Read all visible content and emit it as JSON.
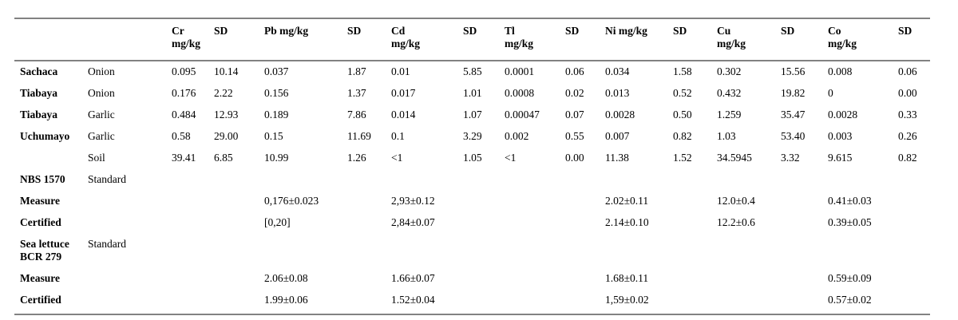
{
  "colors": {
    "rule_gray": "#828282",
    "text": "#000000",
    "background": "#ffffff"
  },
  "table": {
    "headers": [
      {
        "l1": "",
        "l2": ""
      },
      {
        "l1": "",
        "l2": ""
      },
      {
        "l1": "Cr",
        "l2": "mg/kg"
      },
      {
        "l1": "SD",
        "l2": ""
      },
      {
        "l1": "Pb mg/kg",
        "l2": ""
      },
      {
        "l1": "SD",
        "l2": ""
      },
      {
        "l1": "Cd",
        "l2": "mg/kg"
      },
      {
        "l1": "SD",
        "l2": ""
      },
      {
        "l1": "Tl",
        "l2": "mg/kg"
      },
      {
        "l1": "SD",
        "l2": ""
      },
      {
        "l1": "Ni mg/kg",
        "l2": ""
      },
      {
        "l1": "SD",
        "l2": ""
      },
      {
        "l1": "Cu",
        "l2": "mg/kg"
      },
      {
        "l1": "SD",
        "l2": ""
      },
      {
        "l1": "Co",
        "l2": "mg/kg"
      },
      {
        "l1": "SD",
        "l2": ""
      }
    ],
    "rows": [
      [
        "Sachaca",
        "Onion",
        "0.095",
        "10.14",
        "0.037",
        "1.87",
        "0.01",
        "5.85",
        "0.0001",
        "0.06",
        "0.034",
        "1.58",
        "0.302",
        "15.56",
        "0.008",
        "0.06"
      ],
      [
        "Tiabaya",
        "Onion",
        "0.176",
        "2.22",
        "0.156",
        "1.37",
        "0.017",
        "1.01",
        "0.0008",
        "0.02",
        "0.013",
        "0.52",
        "0.432",
        "19.82",
        "0",
        "0.00"
      ],
      [
        "Tiabaya",
        "Garlic",
        "0.484",
        "12.93",
        "0.189",
        "7.86",
        "0.014",
        "1.07",
        "0.00047",
        "0.07",
        "0.0028",
        "0.50",
        "1.259",
        "35.47",
        "0.0028",
        "0.33"
      ],
      [
        "Uchumayo",
        "Garlic",
        "0.58",
        "29.00",
        "0.15",
        "11.69",
        "0.1",
        "3.29",
        "0.002",
        "0.55",
        "0.007",
        "0.82",
        "1.03",
        "53.40",
        "0.003",
        "0.26"
      ],
      [
        "",
        "Soil",
        "39.41",
        "6.85",
        "10.99",
        "1.26",
        "<1",
        "1.05",
        "<1",
        "0.00",
        "11.38",
        "1.52",
        "34.5945",
        "3.32",
        "9.615",
        "0.82"
      ],
      [
        "NBS 1570",
        "Standard",
        "",
        "",
        "",
        "",
        "",
        "",
        "",
        "",
        "",
        "",
        "",
        "",
        "",
        ""
      ],
      [
        "Measure",
        "",
        "",
        "",
        "0,176±0.023",
        "",
        "2,93±0.12",
        "",
        "",
        "",
        "2.02±0.11",
        "",
        "12.0±0.4",
        "",
        "0.41±0.03",
        ""
      ],
      [
        "Certified",
        "",
        "",
        "",
        "[0,20]",
        "",
        "2,84±0.07",
        "",
        "",
        "",
        "2.14±0.10",
        "",
        "12.2±0.6",
        "",
        "0.39±0.05",
        ""
      ],
      [
        "Sea lettuce BCR 279",
        "Standard",
        "",
        "",
        "",
        "",
        "",
        "",
        "",
        "",
        "",
        "",
        "",
        "",
        "",
        ""
      ],
      [
        "Measure",
        "",
        "",
        "",
        "2.06±0.08",
        "",
        "1.66±0.07",
        "",
        "",
        "",
        "1.68±0.11",
        "",
        "",
        "",
        "0.59±0.09",
        ""
      ],
      [
        "Certified",
        "",
        "",
        "",
        "1.99±0.06",
        "",
        "1.52±0.04",
        "",
        "",
        "",
        "1,59±0.02",
        "",
        "",
        "",
        "0.57±0.02",
        ""
      ]
    ]
  }
}
